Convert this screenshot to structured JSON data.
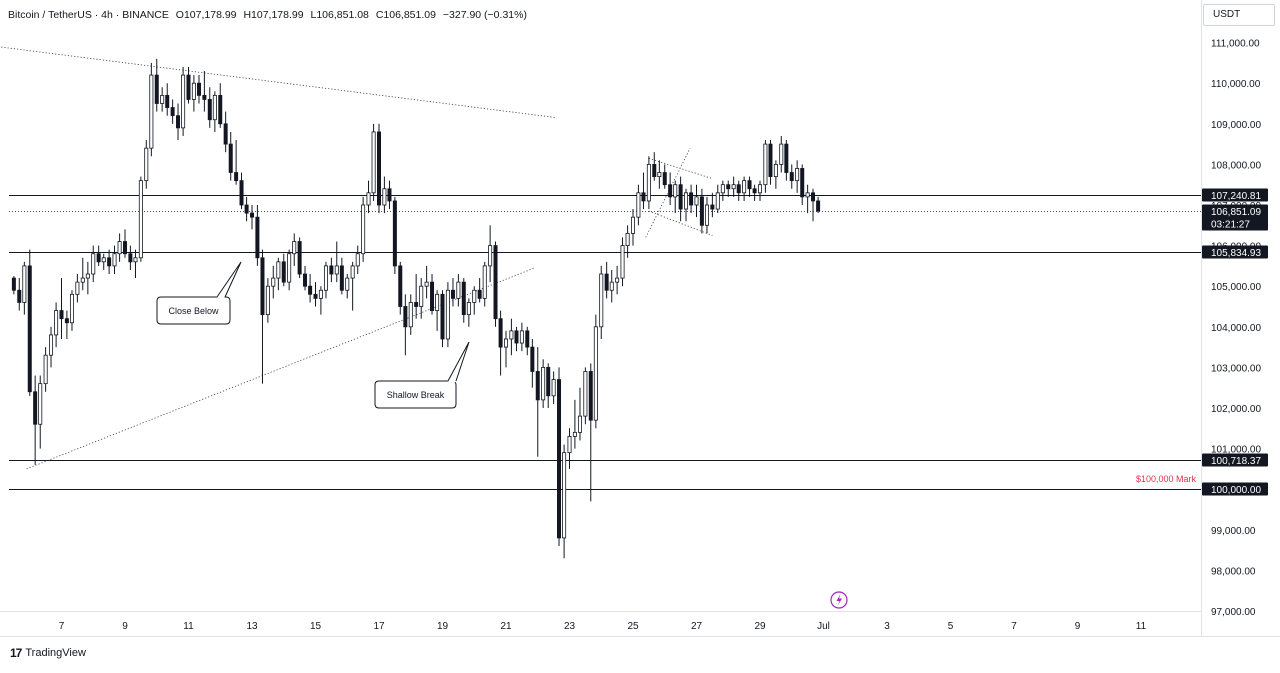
{
  "header": {
    "symbol": "Bitcoin / TetherUS · 4h · BINANCE",
    "open": "O107,178.99",
    "high": "H107,178.99",
    "low": "L106,851.08",
    "close": "C106,851.09",
    "change": "−327.90 (−0.31%)"
  },
  "currency_label": "USDT",
  "footer": {
    "brand": "TradingView"
  },
  "chart_data": {
    "type": "candlestick",
    "title": "Bitcoin / TetherUS · 4h · BINANCE",
    "ylim": [
      97000,
      111400
    ],
    "y_ticks": [
      "97,000.00",
      "98,000.00",
      "99,000.00",
      "100,000.00",
      "101,000.00",
      "102,000.00",
      "103,000.00",
      "104,000.00",
      "105,000.00",
      "106,000.00",
      "107,000.00",
      "108,000.00",
      "109,000.00",
      "110,000.00",
      "111,000.00"
    ],
    "x_ticks": [
      "7",
      "9",
      "11",
      "13",
      "15",
      "17",
      "19",
      "21",
      "23",
      "25",
      "27",
      "29",
      "Jul",
      "3",
      "5",
      "7",
      "9",
      "11"
    ],
    "x_tick_days": [
      7,
      9,
      11,
      13,
      15,
      17,
      19,
      21,
      23,
      25,
      27,
      29,
      31,
      33,
      35,
      37,
      39,
      41
    ],
    "price_lines": [
      {
        "value": 107240.81,
        "label": "107,240.81",
        "style": "solid"
      },
      {
        "value": 106851.09,
        "label": "106,851.09",
        "countdown": "03:21:27",
        "style": "dotted"
      },
      {
        "value": 105834.93,
        "label": "105,834.93",
        "style": "solid"
      },
      {
        "value": 100718.37,
        "label": "100,718.37",
        "style": "solid"
      },
      {
        "value": 100000.0,
        "label": "100,000.00",
        "style": "solid"
      }
    ],
    "annotations": [
      {
        "text": "Close Below",
        "day": 13
      },
      {
        "text": "Shallow Break",
        "day": 19.5
      },
      {
        "text": "$100,000 Mark",
        "value": 100000,
        "color": "#e0334c"
      }
    ],
    "trendlines": [
      {
        "name": "upper-resistance",
        "from": [
          5.0,
          110900
        ],
        "to": [
          22.6,
          109150
        ]
      },
      {
        "name": "rising-support",
        "from": [
          5.9,
          100500
        ],
        "to": [
          21.9,
          105450
        ]
      },
      {
        "name": "flag-upper",
        "from": [
          25.5,
          108150
        ],
        "to": [
          27.5,
          107650
        ]
      },
      {
        "name": "flag-lower",
        "from": [
          25.5,
          106850
        ],
        "to": [
          27.5,
          106250
        ]
      },
      {
        "name": "pole",
        "from": [
          25.4,
          106200
        ],
        "to": [
          26.8,
          108400
        ]
      }
    ],
    "candles": [
      [
        5.5,
        105200,
        105250,
        104800,
        104900
      ],
      [
        5.67,
        104900,
        105200,
        104400,
        104600
      ],
      [
        5.83,
        104600,
        105600,
        104300,
        105500
      ],
      [
        6.0,
        105500,
        105900,
        102300,
        102400
      ],
      [
        6.17,
        102400,
        102800,
        100600,
        101600
      ],
      [
        6.33,
        101600,
        102800,
        101000,
        102600
      ],
      [
        6.5,
        102600,
        103500,
        102400,
        103300
      ],
      [
        6.67,
        103300,
        104000,
        103000,
        103800
      ],
      [
        6.83,
        103800,
        104600,
        103500,
        104400
      ],
      [
        7.0,
        104400,
        105200,
        103700,
        104200
      ],
      [
        7.17,
        104200,
        104400,
        103700,
        104100
      ],
      [
        7.33,
        104100,
        104900,
        103900,
        104800
      ],
      [
        7.5,
        104800,
        105300,
        104600,
        105100
      ],
      [
        7.67,
        105100,
        105700,
        104900,
        105200
      ],
      [
        7.83,
        105200,
        105600,
        104800,
        105300
      ],
      [
        8.0,
        105300,
        106000,
        105100,
        105800
      ],
      [
        8.17,
        105800,
        106000,
        105500,
        105600
      ],
      [
        8.33,
        105600,
        105800,
        105400,
        105700
      ],
      [
        8.5,
        105700,
        105900,
        105300,
        105500
      ],
      [
        8.67,
        105500,
        106000,
        105300,
        105800
      ],
      [
        8.83,
        105800,
        106300,
        105600,
        106100
      ],
      [
        9.0,
        106100,
        106400,
        105700,
        105800
      ],
      [
        9.17,
        105800,
        106000,
        105400,
        105600
      ],
      [
        9.33,
        105600,
        105900,
        105200,
        105700
      ],
      [
        9.5,
        105700,
        107700,
        105600,
        107600
      ],
      [
        9.67,
        107600,
        108600,
        107400,
        108400
      ],
      [
        9.83,
        108400,
        110500,
        108200,
        110200
      ],
      [
        10.0,
        110200,
        110600,
        109300,
        109500
      ],
      [
        10.17,
        109500,
        109900,
        109300,
        109700
      ],
      [
        10.33,
        109700,
        110000,
        109200,
        109400
      ],
      [
        10.5,
        109400,
        109600,
        109000,
        109200
      ],
      [
        10.67,
        109200,
        109500,
        108600,
        108900
      ],
      [
        10.83,
        108900,
        110400,
        108700,
        110200
      ],
      [
        11.0,
        110200,
        110400,
        109500,
        109600
      ],
      [
        11.17,
        109600,
        110200,
        109300,
        110000
      ],
      [
        11.33,
        110000,
        110200,
        109500,
        109700
      ],
      [
        11.5,
        109700,
        110300,
        109300,
        109600
      ],
      [
        11.67,
        109600,
        109900,
        108900,
        109100
      ],
      [
        11.83,
        109100,
        109800,
        108800,
        109700
      ],
      [
        12.0,
        109700,
        110000,
        108900,
        109000
      ],
      [
        12.17,
        109000,
        109300,
        108300,
        108500
      ],
      [
        12.33,
        108500,
        108800,
        107600,
        107800
      ],
      [
        12.5,
        107800,
        108600,
        107500,
        107600
      ],
      [
        12.67,
        107600,
        107800,
        106900,
        107000
      ],
      [
        12.83,
        107000,
        107200,
        106600,
        106800
      ],
      [
        13.0,
        106800,
        107000,
        106400,
        106700
      ],
      [
        13.17,
        106700,
        107000,
        105500,
        105700
      ],
      [
        13.33,
        105700,
        105900,
        102600,
        104300
      ],
      [
        13.5,
        104300,
        105200,
        104100,
        105000
      ],
      [
        13.67,
        105000,
        105500,
        104700,
        105200
      ],
      [
        13.83,
        105200,
        105700,
        104900,
        105600
      ],
      [
        14.0,
        105600,
        105800,
        105000,
        105100
      ],
      [
        14.17,
        105100,
        105900,
        104900,
        105800
      ],
      [
        14.33,
        105800,
        106300,
        105500,
        106100
      ],
      [
        14.5,
        106100,
        106200,
        105200,
        105300
      ],
      [
        14.67,
        105300,
        105500,
        104900,
        105000
      ],
      [
        14.83,
        105000,
        105300,
        104600,
        104800
      ],
      [
        15.0,
        104800,
        105100,
        104500,
        104700
      ],
      [
        15.17,
        104700,
        105000,
        104300,
        104900
      ],
      [
        15.33,
        104900,
        105600,
        104700,
        105500
      ],
      [
        15.5,
        105500,
        105700,
        105100,
        105300
      ],
      [
        15.67,
        105300,
        106100,
        105100,
        105500
      ],
      [
        15.83,
        105500,
        105700,
        104800,
        104900
      ],
      [
        16.0,
        104900,
        105300,
        104700,
        105200
      ],
      [
        16.17,
        105200,
        105600,
        104400,
        105500
      ],
      [
        16.33,
        105500,
        106000,
        105300,
        105800
      ],
      [
        16.5,
        105800,
        107200,
        105600,
        107000
      ],
      [
        16.67,
        107000,
        107600,
        106800,
        107300
      ],
      [
        16.83,
        107300,
        109000,
        107100,
        108800
      ],
      [
        17.0,
        108800,
        109000,
        106800,
        107000
      ],
      [
        17.17,
        107000,
        107700,
        106800,
        107400
      ],
      [
        17.33,
        107400,
        107600,
        106900,
        107100
      ],
      [
        17.5,
        107100,
        107200,
        105300,
        105500
      ],
      [
        17.67,
        105500,
        105600,
        104300,
        104500
      ],
      [
        17.83,
        104500,
        104800,
        103300,
        104000
      ],
      [
        18.0,
        104000,
        104800,
        103800,
        104600
      ],
      [
        18.17,
        104600,
        105300,
        104200,
        104500
      ],
      [
        18.33,
        104500,
        105200,
        104200,
        105000
      ],
      [
        18.5,
        105000,
        105500,
        104700,
        105100
      ],
      [
        18.67,
        105100,
        105300,
        104300,
        104400
      ],
      [
        18.83,
        104400,
        104900,
        103900,
        104800
      ],
      [
        19.0,
        104800,
        104900,
        103500,
        103700
      ],
      [
        19.17,
        103700,
        105100,
        103500,
        104900
      ],
      [
        19.33,
        104900,
        105200,
        104500,
        104700
      ],
      [
        19.5,
        104700,
        105300,
        104500,
        105100
      ],
      [
        19.67,
        105100,
        105200,
        104100,
        104300
      ],
      [
        19.83,
        104300,
        104700,
        104000,
        104600
      ],
      [
        20.0,
        104600,
        105000,
        104300,
        104900
      ],
      [
        20.17,
        104900,
        105200,
        104600,
        104700
      ],
      [
        20.33,
        104700,
        105600,
        104500,
        105500
      ],
      [
        20.5,
        105500,
        106500,
        105100,
        106000
      ],
      [
        20.67,
        106000,
        106100,
        104000,
        104200
      ],
      [
        20.83,
        104200,
        104400,
        102800,
        103500
      ],
      [
        21.0,
        103500,
        103900,
        103000,
        103700
      ],
      [
        21.17,
        103700,
        104200,
        103300,
        103900
      ],
      [
        21.33,
        103900,
        104000,
        103400,
        103600
      ],
      [
        21.5,
        103600,
        104100,
        103400,
        103900
      ],
      [
        21.67,
        103900,
        104000,
        103300,
        103500
      ],
      [
        21.83,
        103500,
        103700,
        102500,
        102900
      ],
      [
        22.0,
        102900,
        103500,
        100800,
        102200
      ],
      [
        22.17,
        102200,
        103200,
        102000,
        103000
      ],
      [
        22.33,
        103000,
        103100,
        102000,
        102300
      ],
      [
        22.5,
        102300,
        102900,
        102100,
        102700
      ],
      [
        22.67,
        102700,
        103000,
        98600,
        98800
      ],
      [
        22.83,
        98800,
        101100,
        98300,
        100900
      ],
      [
        23.0,
        100900,
        101500,
        100500,
        101300
      ],
      [
        23.17,
        101300,
        102200,
        101000,
        101400
      ],
      [
        23.33,
        101400,
        102500,
        101200,
        101800
      ],
      [
        23.5,
        101800,
        103000,
        101600,
        102900
      ],
      [
        23.67,
        102900,
        103100,
        99700,
        101700
      ],
      [
        23.83,
        101700,
        104300,
        101500,
        104000
      ],
      [
        24.0,
        104000,
        105500,
        103700,
        105300
      ],
      [
        24.17,
        105300,
        105600,
        104700,
        104900
      ],
      [
        24.33,
        104900,
        105400,
        104600,
        105100
      ],
      [
        24.5,
        105100,
        105500,
        104800,
        105200
      ],
      [
        24.67,
        105200,
        106200,
        105000,
        106000
      ],
      [
        24.83,
        106000,
        106500,
        105700,
        106300
      ],
      [
        25.0,
        106300,
        106900,
        106000,
        106700
      ],
      [
        25.17,
        106700,
        107500,
        106500,
        107300
      ],
      [
        25.33,
        107300,
        107800,
        106900,
        107100
      ],
      [
        25.5,
        107100,
        108200,
        106900,
        108000
      ],
      [
        25.67,
        108000,
        108300,
        107600,
        107700
      ],
      [
        25.83,
        107700,
        108100,
        107400,
        107800
      ],
      [
        26.0,
        107800,
        108000,
        107400,
        107500
      ],
      [
        26.17,
        107500,
        107800,
        107000,
        107200
      ],
      [
        26.33,
        107200,
        107600,
        106800,
        107500
      ],
      [
        26.5,
        107500,
        107700,
        106600,
        106900
      ],
      [
        26.67,
        106900,
        107400,
        106600,
        107300
      ],
      [
        26.83,
        107300,
        107500,
        106800,
        107000
      ],
      [
        27.0,
        107000,
        107500,
        106700,
        107200
      ],
      [
        27.17,
        107200,
        107400,
        106300,
        106500
      ],
      [
        27.33,
        106500,
        107200,
        106300,
        107000
      ],
      [
        27.5,
        107000,
        107300,
        106700,
        106900
      ],
      [
        27.67,
        106900,
        107500,
        106800,
        107300
      ],
      [
        27.83,
        107300,
        107600,
        107100,
        107500
      ],
      [
        28.0,
        107500,
        107600,
        107200,
        107400
      ],
      [
        28.17,
        107400,
        107700,
        107200,
        107500
      ],
      [
        28.33,
        107500,
        107600,
        107100,
        107300
      ],
      [
        28.5,
        107300,
        107700,
        107100,
        107600
      ],
      [
        28.67,
        107600,
        107700,
        107200,
        107400
      ],
      [
        28.83,
        107400,
        107500,
        107100,
        107300
      ],
      [
        29.0,
        107300,
        107600,
        107100,
        107500
      ],
      [
        29.17,
        107500,
        108600,
        107300,
        108500
      ],
      [
        29.33,
        108500,
        108600,
        107500,
        107700
      ],
      [
        29.5,
        107700,
        108100,
        107400,
        108000
      ],
      [
        29.67,
        108000,
        108700,
        107800,
        108500
      ],
      [
        29.83,
        108500,
        108600,
        107600,
        107800
      ],
      [
        30.0,
        107800,
        108000,
        107400,
        107600
      ],
      [
        30.17,
        107600,
        108100,
        107300,
        107900
      ],
      [
        30.33,
        107900,
        108000,
        107000,
        107200
      ],
      [
        30.5,
        107200,
        107500,
        106800,
        107300
      ],
      [
        30.67,
        107300,
        107400,
        106600,
        107100
      ],
      [
        30.83,
        107100,
        107200,
        106800,
        106850
      ]
    ]
  }
}
